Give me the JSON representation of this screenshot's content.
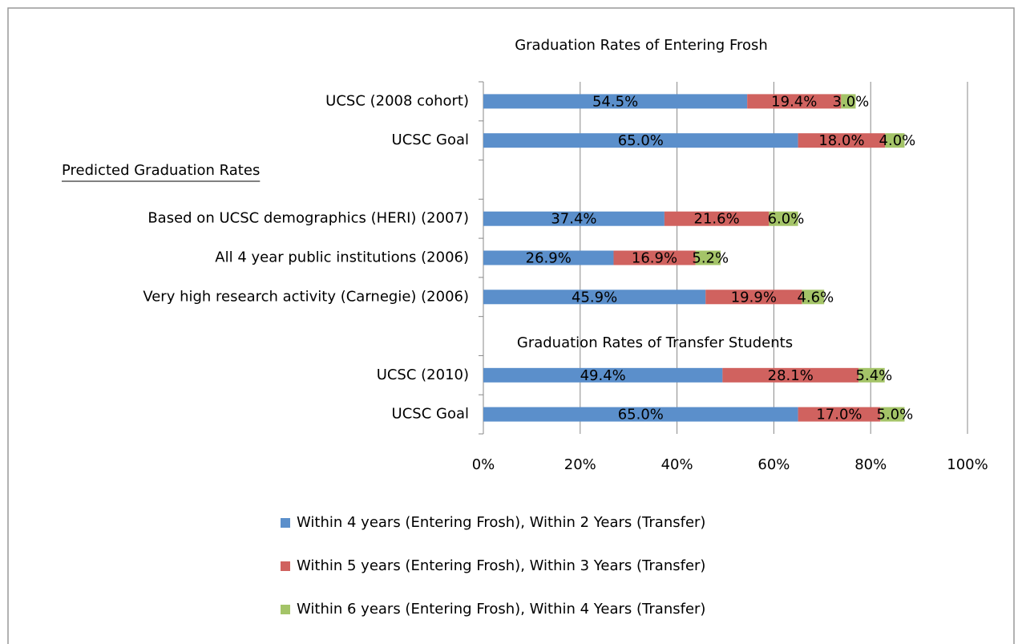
{
  "chart_data": {
    "type": "stacked-bar-horizontal",
    "title": "Graduation Rates of Entering Frosh",
    "annotations": [
      "Predicted Graduation Rates",
      "Graduation Rates of Transfer Students"
    ],
    "categories": [
      "UCSC (2008 cohort)",
      "UCSC Goal",
      null,
      "Based on UCSC demographics (HERI) (2007)",
      "All 4 year public institutions (2006)",
      "Very high research activity (Carnegie) (2006)",
      null,
      "UCSC (2010)",
      "UCSC Goal"
    ],
    "series": [
      {
        "name": "Within 4 years (Entering Frosh), Within 2 Years (Transfer)",
        "color": "#5b8fcb",
        "values": [
          54.5,
          65.0,
          null,
          37.4,
          26.9,
          45.9,
          null,
          49.4,
          65.0
        ],
        "value_labels": [
          "54.5%",
          "65.0%",
          null,
          "37.4%",
          "26.9%",
          "45.9%",
          null,
          "49.4%",
          "65.0%"
        ]
      },
      {
        "name": "Within 5 years (Entering Frosh), Within 3 Years (Transfer)",
        "color": "#d0625f",
        "values": [
          19.4,
          18.0,
          null,
          21.6,
          16.9,
          19.9,
          null,
          28.1,
          17.0
        ],
        "value_labels": [
          "19.4%",
          "18.0%",
          null,
          "21.6%",
          "16.9%",
          "19.9%",
          null,
          "28.1%",
          "17.0%"
        ]
      },
      {
        "name": "Within 6 years (Entering Frosh), Within 4 Years (Transfer)",
        "color": "#a4c468",
        "values": [
          3.0,
          4.0,
          null,
          6.0,
          5.2,
          4.6,
          null,
          5.4,
          5.0
        ],
        "value_labels": [
          "3.0%",
          "4.0%",
          null,
          "6.0%",
          "5.2%",
          "4.6%",
          null,
          "5.4%",
          "5.0%"
        ]
      }
    ],
    "xlim": [
      0,
      100
    ],
    "xticks": [
      {
        "value": 0,
        "label": "0%"
      },
      {
        "value": 20,
        "label": "20%"
      },
      {
        "value": 40,
        "label": "40%"
      },
      {
        "value": 60,
        "label": "60%"
      },
      {
        "value": 80,
        "label": "80%"
      },
      {
        "value": 100,
        "label": "100%"
      }
    ],
    "grid": true,
    "legend": "bottom"
  }
}
